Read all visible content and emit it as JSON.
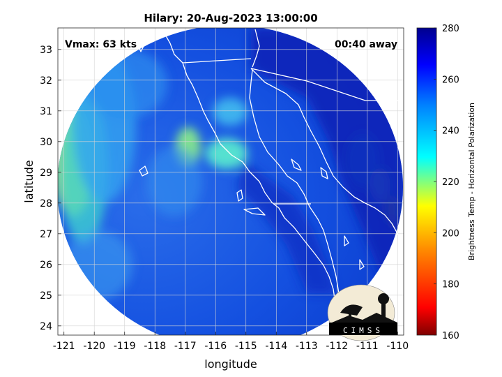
{
  "title": "Hilary: 20-Aug-2023 13:00:00",
  "vmax_label": "Vmax: 63 kts",
  "time_label": "00:40 away",
  "logo_text": "CIMSS",
  "colors": {
    "scale": [
      "#7f0000",
      "#ff0000",
      "#ff8c00",
      "#ffff00",
      "#00ffff",
      "#0080ff",
      "#0000ff",
      "#00008f"
    ]
  },
  "chart_data": {
    "type": "heatmap",
    "xlabel": "longitude",
    "ylabel": "latitude",
    "xlim": [
      -121.2,
      -109.8
    ],
    "ylim": [
      23.7,
      33.7
    ],
    "xticks": [
      "-121",
      "-120",
      "-119",
      "-118",
      "-117",
      "-116",
      "-115",
      "-114",
      "-113",
      "-112",
      "-111",
      "-110"
    ],
    "yticks": [
      "24",
      "25",
      "26",
      "27",
      "28",
      "29",
      "30",
      "31",
      "32",
      "33"
    ],
    "grid": true,
    "colorbar": {
      "label": "Brightness Temp - Horizontal Polarization",
      "range": [
        160,
        280
      ],
      "ticks": [
        "160",
        "180",
        "200",
        "220",
        "240",
        "260",
        "280"
      ]
    }
  }
}
